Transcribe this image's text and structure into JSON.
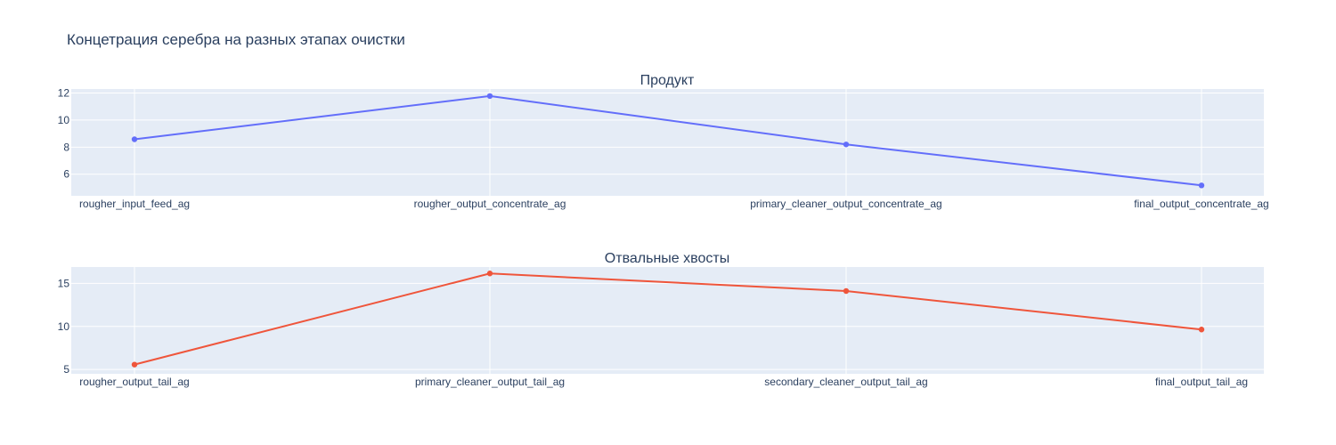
{
  "title": "Концетрация серебра на разных этапах очистки",
  "colors": {
    "plot_bg": "#e5ecf6",
    "grid": "#ffffff",
    "text": "#2a3f5f"
  },
  "chart_data": [
    {
      "type": "line",
      "title": "Продукт",
      "categories": [
        "rougher_input_feed_ag",
        "rougher_output_concentrate_ag",
        "primary_cleaner_output_concentrate_ag",
        "final_output_concentrate_ag"
      ],
      "series": [
        {
          "values": [
            8.58,
            11.78,
            8.2,
            5.17
          ],
          "color": "#636efa"
        }
      ],
      "ylim": [
        4.4,
        12.3
      ],
      "yticks": [
        6,
        8,
        10,
        12
      ],
      "grid": true
    },
    {
      "type": "line",
      "title": "Отвальные хвосты",
      "categories": [
        "rougher_output_tail_ag",
        "primary_cleaner_output_tail_ag",
        "secondary_cleaner_output_tail_ag",
        "final_output_tail_ag"
      ],
      "series": [
        {
          "values": [
            5.57,
            16.15,
            14.11,
            9.64
          ],
          "color": "#ef553b"
        }
      ],
      "ylim": [
        4.5,
        16.9
      ],
      "yticks": [
        5,
        10,
        15
      ],
      "grid": true
    }
  ]
}
